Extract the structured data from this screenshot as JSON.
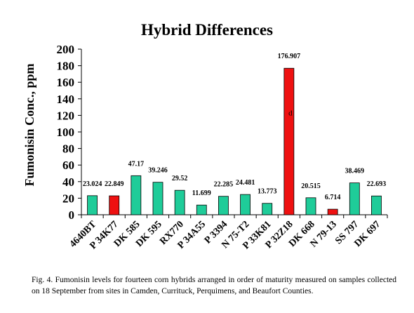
{
  "chart_data": {
    "type": "bar",
    "title": "Hybrid Differences",
    "xlabel": "",
    "ylabel": "Fumonisin Conc., ppm",
    "ylim": [
      0,
      200
    ],
    "yticks": [
      0,
      20,
      40,
      60,
      80,
      100,
      120,
      140,
      160,
      180,
      200
    ],
    "grid": false,
    "legend": "none",
    "categories": [
      "4640BT",
      "P 34K77",
      "DK 585",
      "DK 595",
      "RX770",
      "P 34A55",
      "P 3394",
      "N 75-T2",
      "P 33K81",
      "P 32Z18",
      "DK 668",
      "N 79-13",
      "SS 797",
      "DK 697"
    ],
    "values": [
      23.024,
      22.849,
      47.17,
      39.246,
      29.52,
      11.699,
      22.285,
      24.481,
      13.773,
      176.907,
      20.515,
      6.714,
      38.469,
      22.693
    ],
    "data_labels": [
      "23.024",
      "22.849",
      "47.17",
      "39.246",
      "29.52",
      "11.699",
      "22.285",
      "24.481",
      "13.773",
      "176.907",
      "20.515",
      "6.714",
      "38.469",
      "22.693"
    ],
    "highlighted": [
      false,
      true,
      false,
      false,
      false,
      false,
      false,
      false,
      false,
      true,
      false,
      true,
      false,
      false
    ],
    "annotations": [
      {
        "category": "P 32Z18",
        "text": "d"
      }
    ],
    "colors": {
      "normal": "#1fcc99",
      "highlight": "#ee1111",
      "outline": "#000000"
    }
  },
  "caption": "Fig. 4.  Fumonisin levels for fourteen corn hybrids arranged in order of maturity measured on samples collected on 18 September from sites in Camden, Currituck, Perquimens, and Beaufort Counties."
}
